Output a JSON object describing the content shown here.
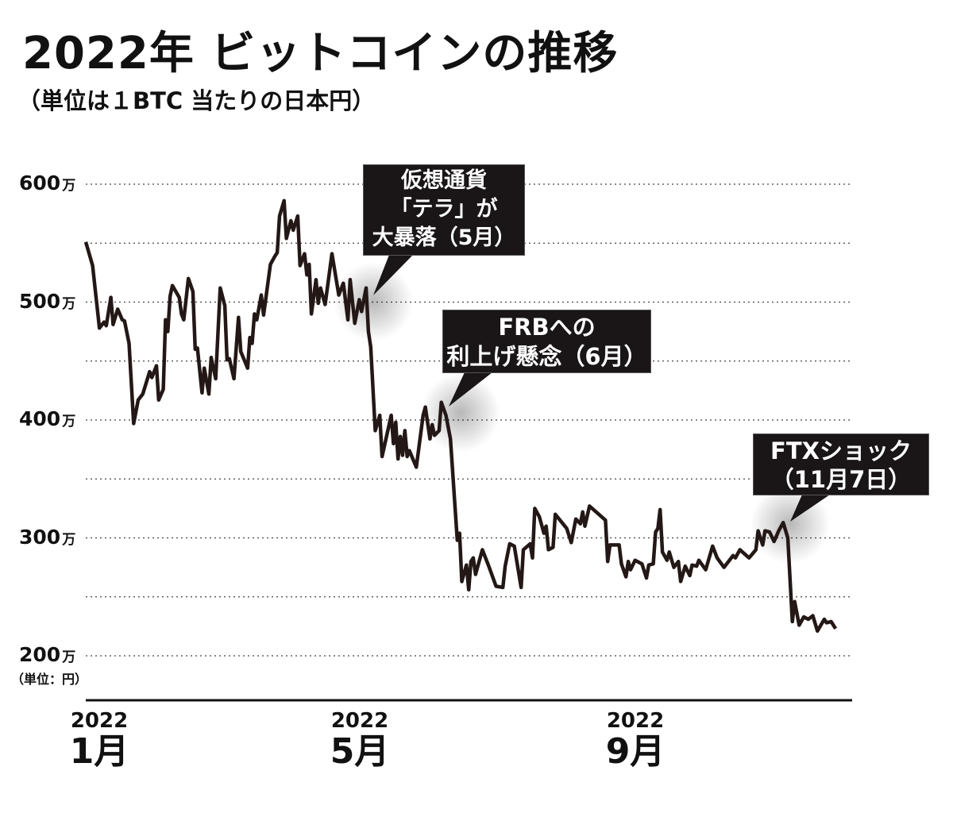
{
  "title": "2022年 ビットコインの推移",
  "subtitle": "（単位は１BTC 当たりの日本円）",
  "y_unit_label": "（単位：円）",
  "callouts": [
    {
      "lines": [
        "仮想通貨",
        "「テラ」が",
        "大暴落（5月）"
      ]
    },
    {
      "lines": [
        "FRBへの",
        "利上げ懸念（6月）"
      ]
    },
    {
      "lines": [
        "FTXショック",
        "（11月7日）"
      ]
    }
  ],
  "chart_data": {
    "type": "line",
    "title": "2022年 ビットコインの推移",
    "subtitle": "（単位は１BTC 当たりの日本円）",
    "ylabel": "（単位：円）",
    "ylim": [
      200,
      600
    ],
    "y_ticks": [
      {
        "value": 600,
        "num": "600",
        "unit": "万"
      },
      {
        "value": 500,
        "num": "500",
        "unit": "万"
      },
      {
        "value": 400,
        "num": "400",
        "unit": "万"
      },
      {
        "value": 300,
        "num": "300",
        "unit": "万"
      },
      {
        "value": 200,
        "num": "200",
        "unit": "万"
      }
    ],
    "grid": "dotted, every 50万",
    "x_ticks": [
      {
        "date": "2022-01-01",
        "year": "2022",
        "month": "1月"
      },
      {
        "date": "2022-05-01",
        "year": "2022",
        "month": "5月"
      },
      {
        "date": "2022-09-01",
        "year": "2022",
        "month": "9月"
      }
    ],
    "line_color": "#231815",
    "series": [
      {
        "unit": "万円",
        "points": [
          [
            "2022-01-01",
            551
          ],
          [
            "2022-01-04",
            531
          ],
          [
            "2022-01-07",
            478
          ],
          [
            "2022-01-09",
            483
          ],
          [
            "2022-01-10",
            480
          ],
          [
            "2022-01-12",
            504
          ],
          [
            "2022-01-13",
            481
          ],
          [
            "2022-01-15",
            494
          ],
          [
            "2022-01-17",
            485
          ],
          [
            "2022-01-18",
            484
          ],
          [
            "2022-01-20",
            465
          ],
          [
            "2022-01-22",
            397
          ],
          [
            "2022-01-24",
            417
          ],
          [
            "2022-01-26",
            422
          ],
          [
            "2022-01-29",
            441
          ],
          [
            "2022-01-30",
            436
          ],
          [
            "2022-02-01",
            446
          ],
          [
            "2022-02-02",
            417
          ],
          [
            "2022-02-04",
            426
          ],
          [
            "2022-02-05",
            485
          ],
          [
            "2022-02-06",
            475
          ],
          [
            "2022-02-07",
            505
          ],
          [
            "2022-02-08",
            514
          ],
          [
            "2022-02-11",
            504
          ],
          [
            "2022-02-12",
            490
          ],
          [
            "2022-02-13",
            485
          ],
          [
            "2022-02-15",
            520
          ],
          [
            "2022-02-17",
            509
          ],
          [
            "2022-02-18",
            460
          ],
          [
            "2022-02-19",
            461
          ],
          [
            "2022-02-21",
            423
          ],
          [
            "2022-02-22",
            444
          ],
          [
            "2022-02-24",
            422
          ],
          [
            "2022-02-25",
            453
          ],
          [
            "2022-02-27",
            435
          ],
          [
            "2022-03-01",
            512
          ],
          [
            "2022-03-03",
            497
          ],
          [
            "2022-03-04",
            451
          ],
          [
            "2022-03-05",
            452
          ],
          [
            "2022-03-07",
            435
          ],
          [
            "2022-03-09",
            487
          ],
          [
            "2022-03-10",
            458
          ],
          [
            "2022-03-13",
            444
          ],
          [
            "2022-03-14",
            470
          ],
          [
            "2022-03-15",
            465
          ],
          [
            "2022-03-16",
            490
          ],
          [
            "2022-03-17",
            485
          ],
          [
            "2022-03-19",
            506
          ],
          [
            "2022-03-20",
            489
          ],
          [
            "2022-03-23",
            532
          ],
          [
            "2022-03-25",
            539
          ],
          [
            "2022-03-26",
            542
          ],
          [
            "2022-03-27",
            573
          ],
          [
            "2022-03-29",
            586
          ],
          [
            "2022-03-30",
            554
          ],
          [
            "2022-04-01",
            569
          ],
          [
            "2022-04-02",
            561
          ],
          [
            "2022-04-04",
            573
          ],
          [
            "2022-04-05",
            531
          ],
          [
            "2022-04-07",
            541
          ],
          [
            "2022-04-08",
            523
          ],
          [
            "2022-04-09",
            532
          ],
          [
            "2022-04-10",
            490
          ],
          [
            "2022-04-12",
            519
          ],
          [
            "2022-04-13",
            499
          ],
          [
            "2022-04-14",
            512
          ],
          [
            "2022-04-16",
            498
          ],
          [
            "2022-04-19",
            541
          ],
          [
            "2022-04-22",
            506
          ],
          [
            "2022-04-24",
            516
          ],
          [
            "2022-04-26",
            485
          ],
          [
            "2022-04-27",
            519
          ],
          [
            "2022-04-29",
            482
          ],
          [
            "2022-05-01",
            502
          ],
          [
            "2022-05-02",
            492
          ],
          [
            "2022-05-04",
            512
          ],
          [
            "2022-05-05",
            475
          ],
          [
            "2022-05-06",
            462
          ],
          [
            "2022-05-08",
            391
          ],
          [
            "2022-05-10",
            404
          ],
          [
            "2022-05-11",
            369
          ],
          [
            "2022-05-15",
            404
          ],
          [
            "2022-05-16",
            380
          ],
          [
            "2022-05-17",
            398
          ],
          [
            "2022-05-18",
            367
          ],
          [
            "2022-05-19",
            386
          ],
          [
            "2022-05-20",
            370
          ],
          [
            "2022-05-21",
            391
          ],
          [
            "2022-05-22",
            369
          ],
          [
            "2022-05-23",
            374
          ],
          [
            "2022-05-26",
            360
          ],
          [
            "2022-05-29",
            404
          ],
          [
            "2022-05-30",
            411
          ],
          [
            "2022-06-01",
            384
          ],
          [
            "2022-06-02",
            396
          ],
          [
            "2022-06-03",
            387
          ],
          [
            "2022-06-05",
            391
          ],
          [
            "2022-06-06",
            415
          ],
          [
            "2022-06-08",
            404
          ],
          [
            "2022-06-10",
            384
          ],
          [
            "2022-06-13",
            298
          ],
          [
            "2022-06-14",
            304
          ],
          [
            "2022-06-15",
            263
          ],
          [
            "2022-06-17",
            277
          ],
          [
            "2022-06-18",
            256
          ],
          [
            "2022-06-19",
            280
          ],
          [
            "2022-06-20",
            283
          ],
          [
            "2022-06-21",
            269
          ],
          [
            "2022-06-24",
            290
          ],
          [
            "2022-06-27",
            275
          ],
          [
            "2022-06-30",
            259
          ],
          [
            "2022-07-03",
            258
          ],
          [
            "2022-07-04",
            276
          ],
          [
            "2022-07-06",
            295
          ],
          [
            "2022-07-08",
            293
          ],
          [
            "2022-07-11",
            258
          ],
          [
            "2022-07-12",
            290
          ],
          [
            "2022-07-15",
            295
          ],
          [
            "2022-07-16",
            283
          ],
          [
            "2022-07-17",
            325
          ],
          [
            "2022-07-19",
            318
          ],
          [
            "2022-07-21",
            304
          ],
          [
            "2022-07-22",
            310
          ],
          [
            "2022-07-23",
            290
          ],
          [
            "2022-07-25",
            292
          ],
          [
            "2022-07-26",
            320
          ],
          [
            "2022-07-31",
            308
          ],
          [
            "2022-08-02",
            296
          ],
          [
            "2022-08-04",
            316
          ],
          [
            "2022-08-06",
            312
          ],
          [
            "2022-08-07",
            322
          ],
          [
            "2022-08-08",
            310
          ],
          [
            "2022-08-10",
            327
          ],
          [
            "2022-08-17",
            315
          ],
          [
            "2022-08-18",
            280
          ],
          [
            "2022-08-19",
            294
          ],
          [
            "2022-08-23",
            294
          ],
          [
            "2022-08-24",
            278
          ],
          [
            "2022-08-26",
            267
          ],
          [
            "2022-08-27",
            280
          ],
          [
            "2022-08-28",
            273
          ],
          [
            "2022-08-30",
            281
          ],
          [
            "2022-09-02",
            278
          ],
          [
            "2022-09-04",
            266
          ],
          [
            "2022-09-05",
            277
          ],
          [
            "2022-09-07",
            278
          ],
          [
            "2022-09-08",
            305
          ],
          [
            "2022-09-09",
            308
          ],
          [
            "2022-09-10",
            324
          ],
          [
            "2022-09-11",
            288
          ],
          [
            "2022-09-13",
            281
          ],
          [
            "2022-09-14",
            288
          ],
          [
            "2022-09-16",
            275
          ],
          [
            "2022-09-18",
            280
          ],
          [
            "2022-09-19",
            263
          ],
          [
            "2022-09-21",
            276
          ],
          [
            "2022-09-23",
            268
          ],
          [
            "2022-09-24",
            277
          ],
          [
            "2022-09-26",
            276
          ],
          [
            "2022-09-27",
            281
          ],
          [
            "2022-09-30",
            273
          ],
          [
            "2022-10-03",
            293
          ],
          [
            "2022-10-05",
            283
          ],
          [
            "2022-10-08",
            275
          ],
          [
            "2022-10-12",
            285
          ],
          [
            "2022-10-13",
            283
          ],
          [
            "2022-10-15",
            290
          ],
          [
            "2022-10-19",
            283
          ],
          [
            "2022-10-22",
            290
          ],
          [
            "2022-10-23",
            306
          ],
          [
            "2022-10-25",
            294
          ],
          [
            "2022-10-26",
            306
          ],
          [
            "2022-10-28",
            305
          ],
          [
            "2022-10-30",
            297
          ],
          [
            "2022-11-01",
            306
          ],
          [
            "2022-11-03",
            313
          ],
          [
            "2022-11-05",
            300
          ],
          [
            "2022-11-07",
            229
          ],
          [
            "2022-11-08",
            246
          ],
          [
            "2022-11-10",
            226
          ],
          [
            "2022-11-12",
            233
          ],
          [
            "2022-11-14",
            231
          ],
          [
            "2022-11-16",
            234
          ],
          [
            "2022-11-18",
            221
          ],
          [
            "2022-11-21",
            231
          ],
          [
            "2022-11-22",
            228
          ],
          [
            "2022-11-24",
            229
          ],
          [
            "2022-11-26",
            223
          ]
        ]
      }
    ]
  }
}
